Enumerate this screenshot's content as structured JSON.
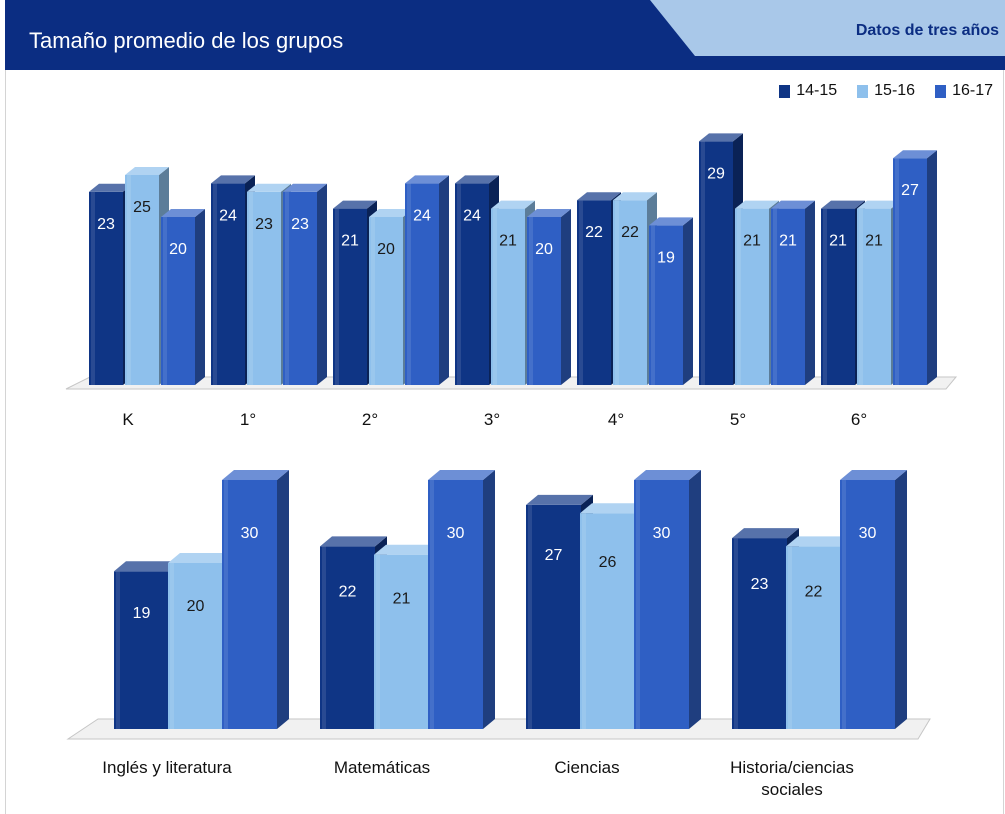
{
  "header": {
    "title": "Tamaño promedio de los grupos",
    "subtitle": "Datos de tres años"
  },
  "colors": {
    "header_bg": "#0b2d82",
    "tab_bg": "#a9c8e9",
    "series": [
      "#0f3585",
      "#8ec0ec",
      "#2f5fc4"
    ]
  },
  "legend": [
    "14-15",
    "15-16",
    "16-17"
  ],
  "chart_data": [
    {
      "type": "bar",
      "categories": [
        "K",
        "1°",
        "2°",
        "3°",
        "4°",
        "5°",
        "6°"
      ],
      "series": [
        {
          "name": "14-15",
          "values": [
            23,
            24,
            21,
            24,
            22,
            29,
            21
          ]
        },
        {
          "name": "15-16",
          "values": [
            25,
            23,
            20,
            21,
            22,
            21,
            21
          ]
        },
        {
          "name": "16-17",
          "values": [
            20,
            23,
            24,
            20,
            19,
            21,
            27
          ]
        }
      ],
      "grid": false,
      "legend_position": "top-right"
    },
    {
      "type": "bar",
      "categories": [
        "Inglés y literatura",
        "Matemáticas",
        "Ciencias",
        "Historia/ciencias sociales"
      ],
      "series": [
        {
          "name": "14-15",
          "values": [
            19,
            22,
            27,
            23
          ]
        },
        {
          "name": "15-16",
          "values": [
            20,
            21,
            26,
            22
          ]
        },
        {
          "name": "16-17",
          "values": [
            30,
            30,
            30,
            30
          ]
        }
      ],
      "grid": false,
      "legend_position": "top-right"
    }
  ]
}
